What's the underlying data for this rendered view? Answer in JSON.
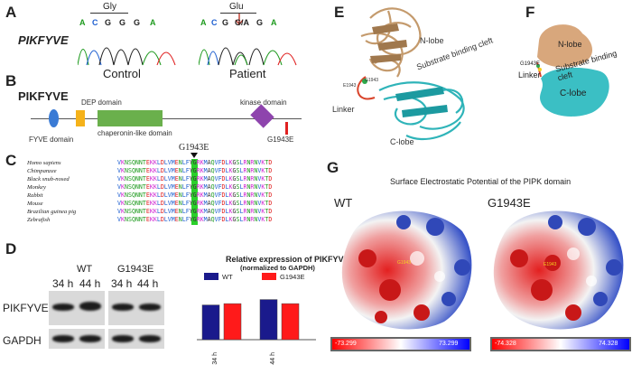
{
  "panelA": {
    "label": "A",
    "gene": "PIKFYVE",
    "control": {
      "caption": "Control",
      "aa": "Gly",
      "bases": [
        "A",
        "C",
        "G",
        "G",
        "G",
        "A"
      ]
    },
    "patient": {
      "caption": "Patient",
      "aa": "Glu",
      "bases": [
        "A",
        "C",
        "G",
        "G/A",
        "G",
        "A"
      ]
    }
  },
  "panelB": {
    "label": "B",
    "gene": "PIKFYVE",
    "domains": [
      "DEP domain",
      "chaperonin-like domain",
      "kinase domain",
      "FYVE domain"
    ],
    "mutation": "G1943E"
  },
  "panelC": {
    "label": "C",
    "mutation": "G1943E",
    "species": [
      "Homo sapiens",
      "Chimpanzee",
      "Black snub-nosed",
      "Monkey",
      "Rabbit",
      "Mouse",
      "Brazilian guinea pig",
      "Zebrafish"
    ],
    "left_seq": "VKNSQNNTEKKLDLVMENLFY",
    "conserved": "G",
    "right_seq": "RKMAQVFDLKGSLRNRNVKTD"
  },
  "panelD": {
    "label": "D",
    "blot": {
      "groups": [
        "WT",
        "G1943E"
      ],
      "times": [
        "34 h",
        "44 h",
        "34 h",
        "44 h"
      ],
      "rows": [
        "PIKFYVE",
        "GAPDH"
      ]
    },
    "chart_data": {
      "type": "bar",
      "title": "Relative expression of PIKFYVE",
      "subtitle": "(normalized to GAPDH)",
      "categories": [
        "34 h",
        "44 h"
      ],
      "series": [
        {
          "name": "WT",
          "values": [
            1.28,
            1.48
          ],
          "color": "#1a1a8c"
        },
        {
          "name": "G1943E",
          "values": [
            1.33,
            1.33
          ],
          "color": "#ff1a1a"
        }
      ],
      "ylim": [
        0,
        2.0
      ],
      "legend": "top",
      "grid": false
    }
  },
  "panelE": {
    "label": "E",
    "labels": [
      "N-lobe",
      "Substrate binding cleft",
      "Linker",
      "C-lobe",
      "G1943",
      "E1943"
    ]
  },
  "panelF": {
    "label": "F",
    "labels": [
      "N-lobe",
      "Substrate binding cleft",
      "G1943E",
      "Linker",
      "C-lobe"
    ]
  },
  "panelG": {
    "label": "G",
    "title": "Surface Electrostatic Potential of the PIPK domain",
    "wt": {
      "label": "WT",
      "site": "G1943",
      "scale_min": "-73.299",
      "scale_max": "73.299"
    },
    "mut": {
      "label": "G1943E",
      "site": "E1943",
      "scale_min": "-74.328",
      "scale_max": "74.328"
    }
  },
  "colors": {
    "wt_bar": "#1a1a8c",
    "mut_bar": "#ff1a1a",
    "teal": "#3bbfc4",
    "tan": "#d8a77c"
  }
}
